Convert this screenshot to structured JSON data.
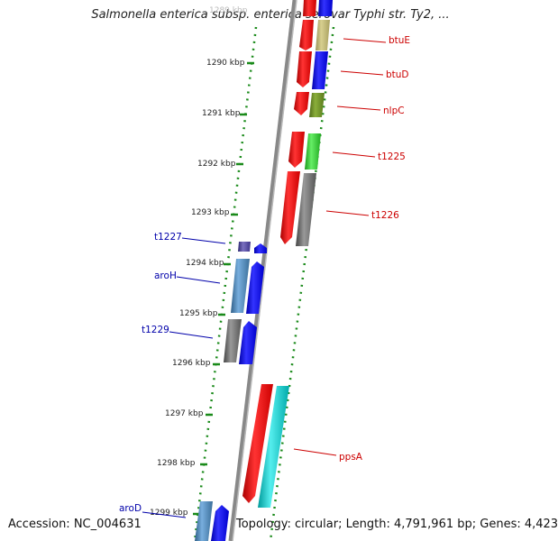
{
  "title": "Salmonella enterica subsp. enterica serovar Typhi str. Ty2, ...",
  "footer": {
    "accession": "Accession: NC_004631",
    "info": "Topology: circular; Length: 4,791,961 bp; Genes: 4,423"
  },
  "scale_label_top": "1289 kbp",
  "ticks": [
    "1290 kbp",
    "1291 kbp",
    "1292 kbp",
    "1293 kbp",
    "1294 kbp",
    "1295 kbp",
    "1296 kbp",
    "1297 kbp",
    "1298 kbp",
    "1299 kbp"
  ],
  "colors": {
    "forward_label": "#cc0000",
    "reverse_label": "#0000aa",
    "tick_dots": "#1a8a1a",
    "backbone": "#888888",
    "gene_red": "#ff0000",
    "gene_blue": "#0000ff",
    "gene_khaki": "#b8b070",
    "gene_olive": "#6b8e23",
    "gene_green": "#33cc33",
    "gene_gray": "#666666",
    "gene_steel": "#4682b4",
    "gene_darkslate": "#483d8b",
    "gene_cyan": "#00cccc"
  },
  "forward_genes": [
    {
      "name": "btuE"
    },
    {
      "name": "btuD"
    },
    {
      "name": "nlpC"
    },
    {
      "name": "t1225"
    },
    {
      "name": "t1226"
    },
    {
      "name": "ppsA"
    }
  ],
  "reverse_genes": [
    {
      "name": "t1227"
    },
    {
      "name": "aroH"
    },
    {
      "name": "t1229"
    },
    {
      "name": "aroD"
    }
  ]
}
